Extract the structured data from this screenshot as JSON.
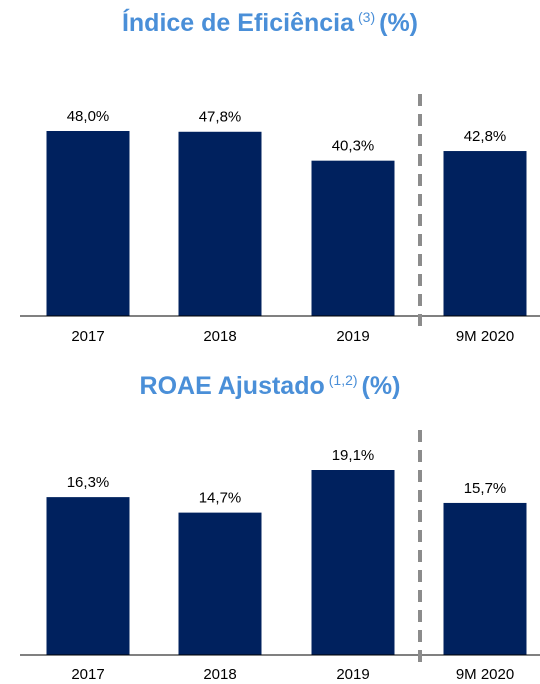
{
  "chart_data": [
    {
      "type": "bar",
      "title": "Índice de Eficiência",
      "title_superscript": "(3)",
      "title_suffix": "(%)",
      "categories": [
        "2017",
        "2018",
        "2019",
        "9M 2020"
      ],
      "values": [
        48.0,
        47.8,
        40.3,
        42.8
      ],
      "value_labels": [
        "48,0%",
        "47,8%",
        "40,3%",
        "42,8%"
      ],
      "color": "#00215e"
    },
    {
      "type": "bar",
      "title": "ROAE Ajustado",
      "title_superscript": "(1,2)",
      "title_suffix": "(%)",
      "categories": [
        "2017",
        "2018",
        "2019",
        "9M 2020"
      ],
      "values": [
        16.3,
        14.7,
        19.1,
        15.7
      ],
      "value_labels": [
        "16,3%",
        "14,7%",
        "19,1%",
        "15,7%"
      ],
      "color": "#00215e"
    }
  ]
}
